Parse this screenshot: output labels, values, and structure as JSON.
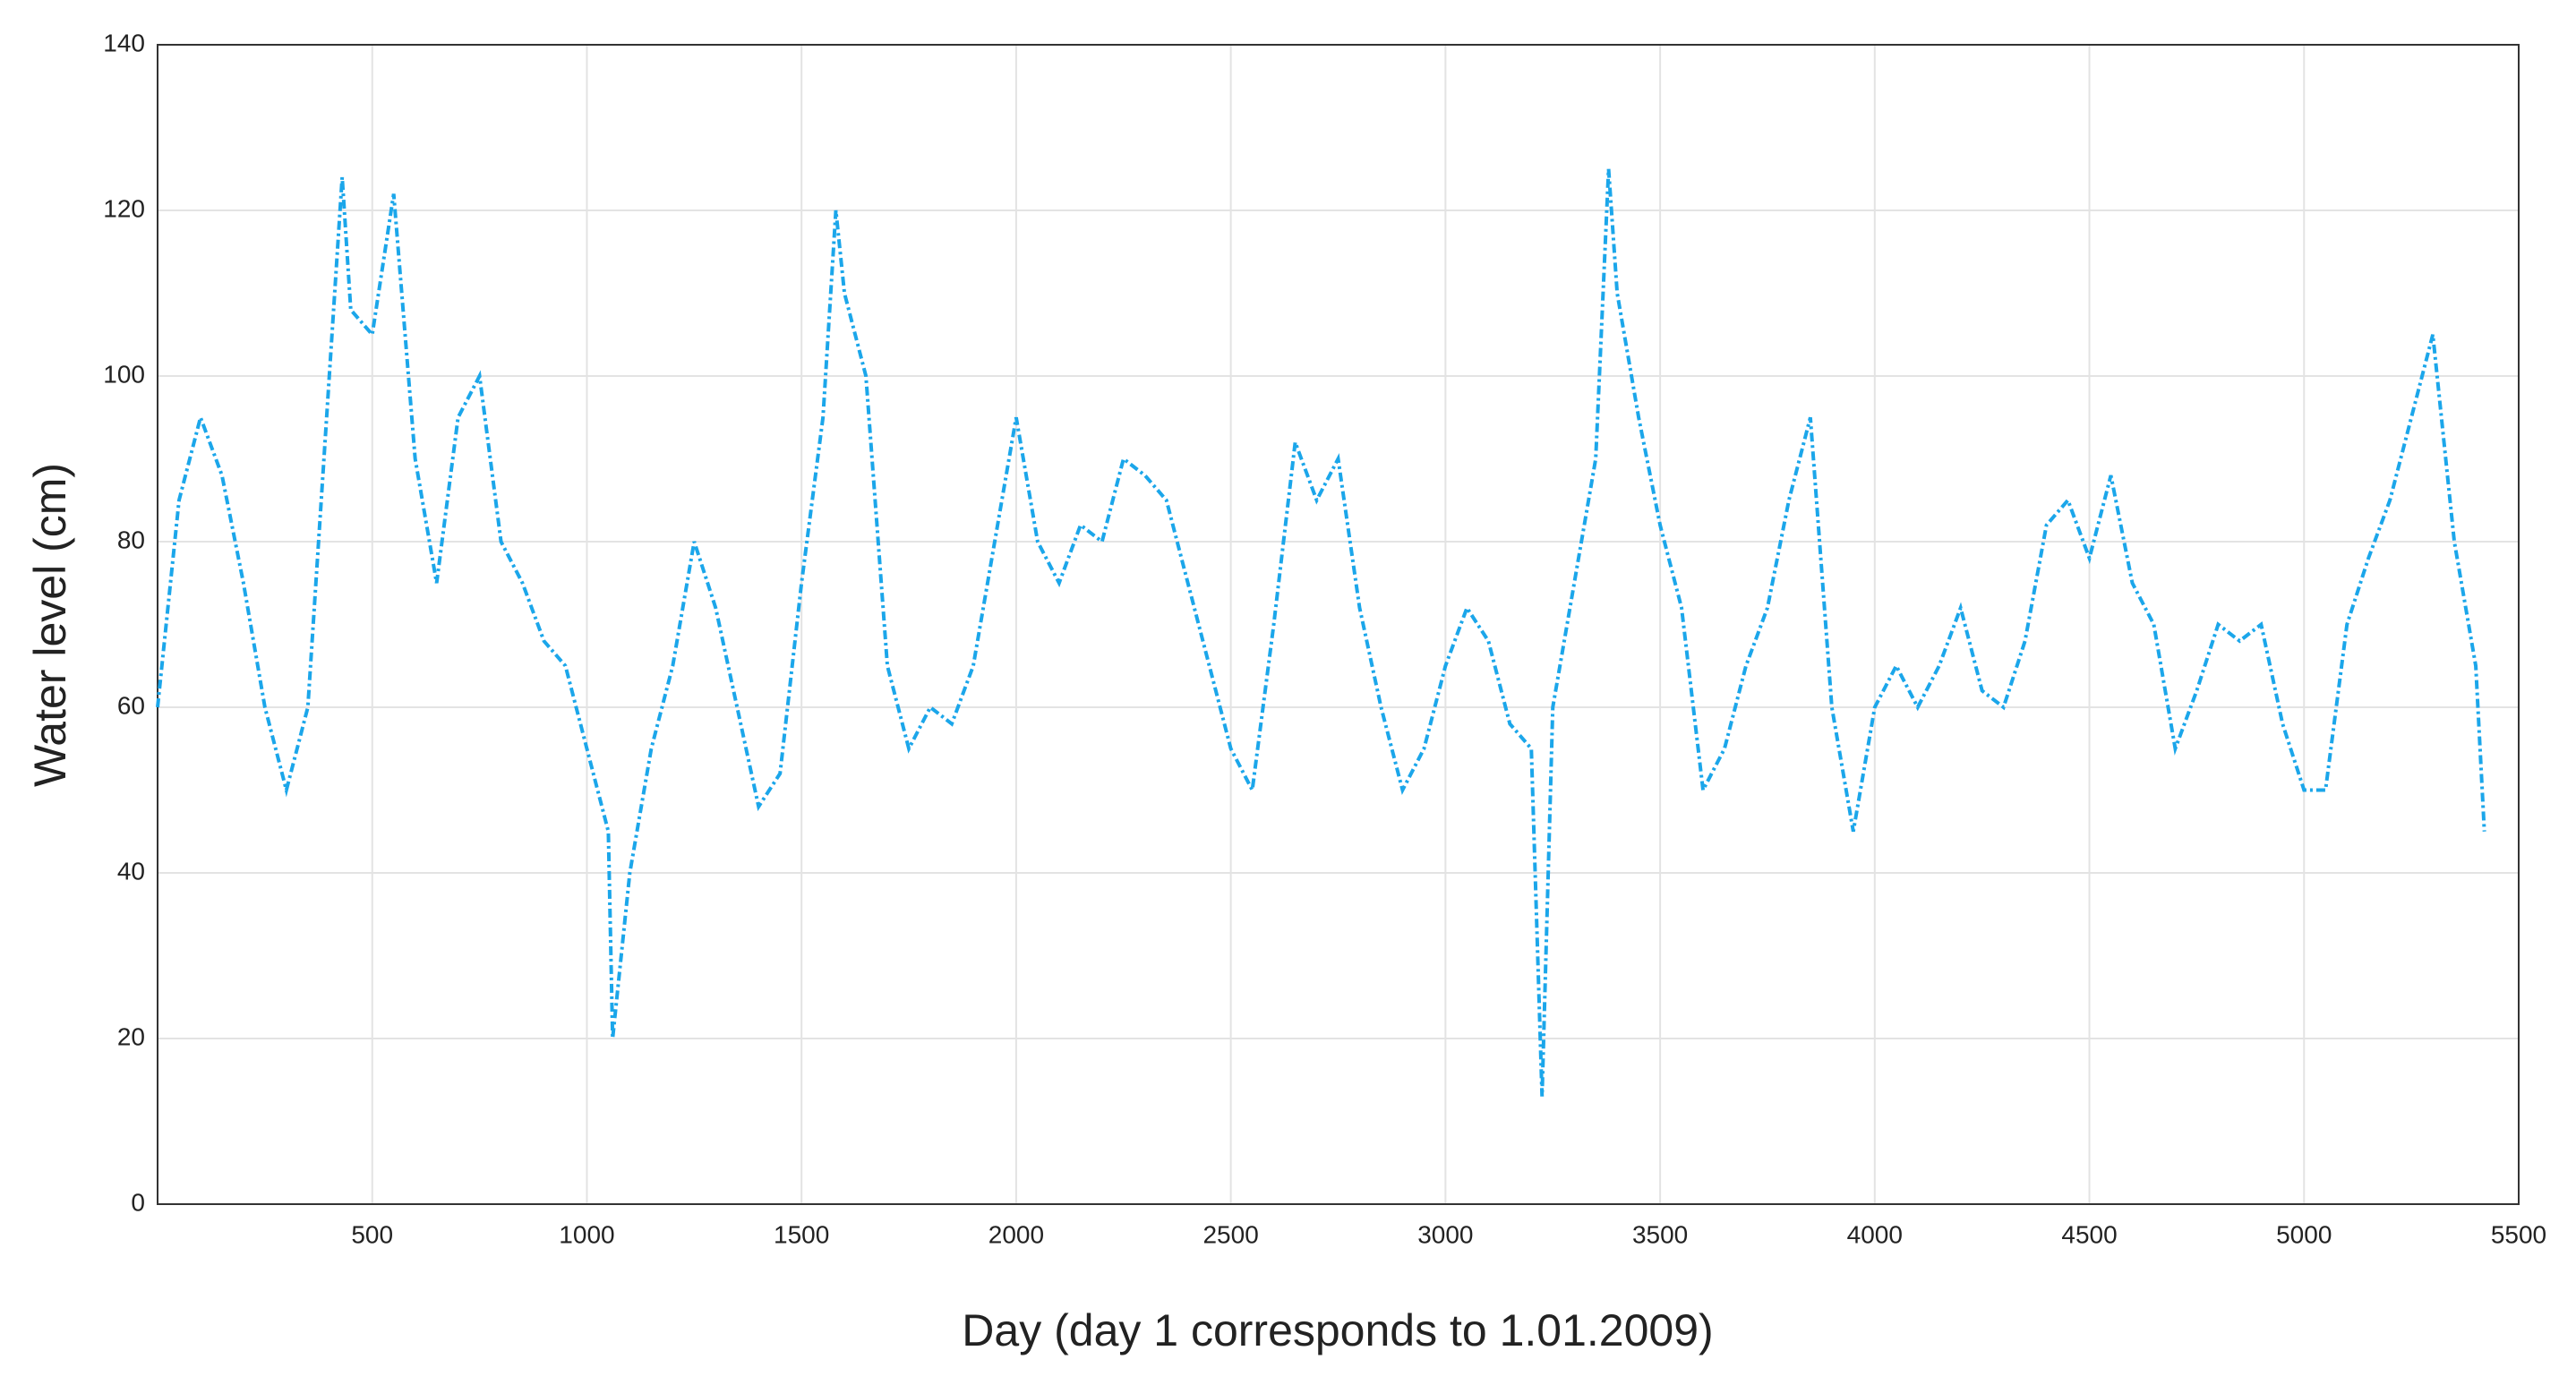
{
  "chart_data": {
    "type": "line",
    "xlabel": "Day (day 1 corresponds to 1.01.2009)",
    "ylabel": "Water level (cm)",
    "xlim": [
      0,
      5500
    ],
    "ylim": [
      0,
      140
    ],
    "xticks": [
      500,
      1000,
      1500,
      2000,
      2500,
      3000,
      3500,
      4000,
      4500,
      5000,
      5500
    ],
    "yticks": [
      0,
      20,
      40,
      60,
      80,
      100,
      120,
      140
    ],
    "grid": true,
    "series": [
      {
        "color": "#1ba6ea",
        "x": [
          0,
          50,
          100,
          150,
          200,
          250,
          300,
          350,
          400,
          430,
          450,
          500,
          550,
          600,
          650,
          700,
          750,
          800,
          850,
          900,
          950,
          1000,
          1050,
          1060,
          1100,
          1150,
          1200,
          1250,
          1300,
          1350,
          1400,
          1450,
          1500,
          1550,
          1580,
          1600,
          1650,
          1700,
          1750,
          1800,
          1850,
          1900,
          1950,
          2000,
          2050,
          2100,
          2150,
          2200,
          2250,
          2300,
          2350,
          2400,
          2450,
          2500,
          2550,
          2600,
          2650,
          2700,
          2750,
          2800,
          2850,
          2900,
          2950,
          3000,
          3050,
          3100,
          3150,
          3200,
          3225,
          3250,
          3300,
          3350,
          3380,
          3400,
          3450,
          3500,
          3550,
          3600,
          3650,
          3700,
          3750,
          3800,
          3850,
          3900,
          3950,
          4000,
          4050,
          4100,
          4150,
          4200,
          4250,
          4300,
          4350,
          4400,
          4450,
          4500,
          4550,
          4600,
          4650,
          4700,
          4750,
          4800,
          4850,
          4900,
          4950,
          5000,
          5050,
          5100,
          5150,
          5200,
          5250,
          5300,
          5350,
          5400,
          5420
        ],
        "values": [
          60,
          85,
          95,
          88,
          75,
          60,
          50,
          60,
          100,
          124,
          108,
          105,
          122,
          90,
          75,
          95,
          100,
          80,
          75,
          68,
          65,
          55,
          45,
          20,
          40,
          55,
          65,
          80,
          72,
          60,
          48,
          52,
          75,
          95,
          120,
          110,
          100,
          65,
          55,
          60,
          58,
          65,
          80,
          95,
          80,
          75,
          82,
          80,
          90,
          88,
          85,
          75,
          65,
          55,
          50,
          70,
          92,
          85,
          90,
          72,
          60,
          50,
          55,
          65,
          72,
          68,
          58,
          55,
          13,
          60,
          75,
          90,
          125,
          110,
          95,
          82,
          72,
          50,
          55,
          65,
          72,
          85,
          95,
          60,
          45,
          60,
          65,
          60,
          65,
          72,
          62,
          60,
          68,
          82,
          85,
          78,
          88,
          75,
          70,
          55,
          62,
          70,
          68,
          70,
          58,
          50,
          50,
          70,
          78,
          85,
          95,
          105,
          80,
          65,
          45
        ]
      }
    ]
  }
}
